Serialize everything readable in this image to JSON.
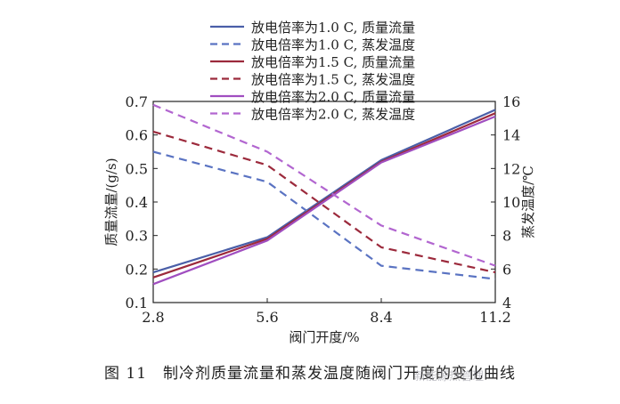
{
  "caption": "图 11　制冷剂质量流量和蒸发温度随阀门开度的变化曲线",
  "watermark": "新能源热管理",
  "chart_data": {
    "type": "line",
    "title": "",
    "xlabel": "阀门开度/%",
    "ylabel": "质量流量/(g/s)",
    "y2label": "蒸发温度/℃",
    "x": [
      2.8,
      5.6,
      8.4,
      11.2
    ],
    "xticks": [
      "2.8",
      "5.6",
      "8.4",
      "11.2"
    ],
    "xlim": [
      2.8,
      11.2
    ],
    "ylim": [
      0.1,
      0.7
    ],
    "yticks": [
      "0.1",
      "0.2",
      "0.3",
      "0.4",
      "0.5",
      "0.6",
      "0.7"
    ],
    "y2lim": [
      4,
      16
    ],
    "y2ticks": [
      "4",
      "6",
      "8",
      "10",
      "12",
      "14",
      "16"
    ],
    "legend_position": "top",
    "series": [
      {
        "name": "放电倍率为1.0 C, 质量流量",
        "axis": "left",
        "style": "solid",
        "color": "#4a5fa8",
        "values": [
          0.19,
          0.295,
          0.525,
          0.675
        ]
      },
      {
        "name": "放电倍率为1.0 C, 蒸发温度",
        "axis": "right",
        "style": "dashed",
        "color": "#5a73c2",
        "values": [
          13.0,
          11.2,
          6.2,
          5.4
        ]
      },
      {
        "name": "放电倍率为1.5 C, 质量流量",
        "axis": "left",
        "style": "solid",
        "color": "#9c2a3c",
        "values": [
          0.175,
          0.29,
          0.52,
          0.665
        ]
      },
      {
        "name": "放电倍率为1.5 C, 蒸发温度",
        "axis": "right",
        "style": "dashed",
        "color": "#9c2a3c",
        "values": [
          14.2,
          12.2,
          7.3,
          5.8
        ]
      },
      {
        "name": "放电倍率为2.0 C, 质量流量",
        "axis": "left",
        "style": "solid",
        "color": "#a04ec0",
        "values": [
          0.155,
          0.285,
          0.518,
          0.655
        ]
      },
      {
        "name": "放电倍率为2.0 C, 蒸发温度",
        "axis": "right",
        "style": "dashed",
        "color": "#b266d0",
        "values": [
          15.8,
          13.0,
          8.6,
          6.2
        ]
      }
    ]
  }
}
